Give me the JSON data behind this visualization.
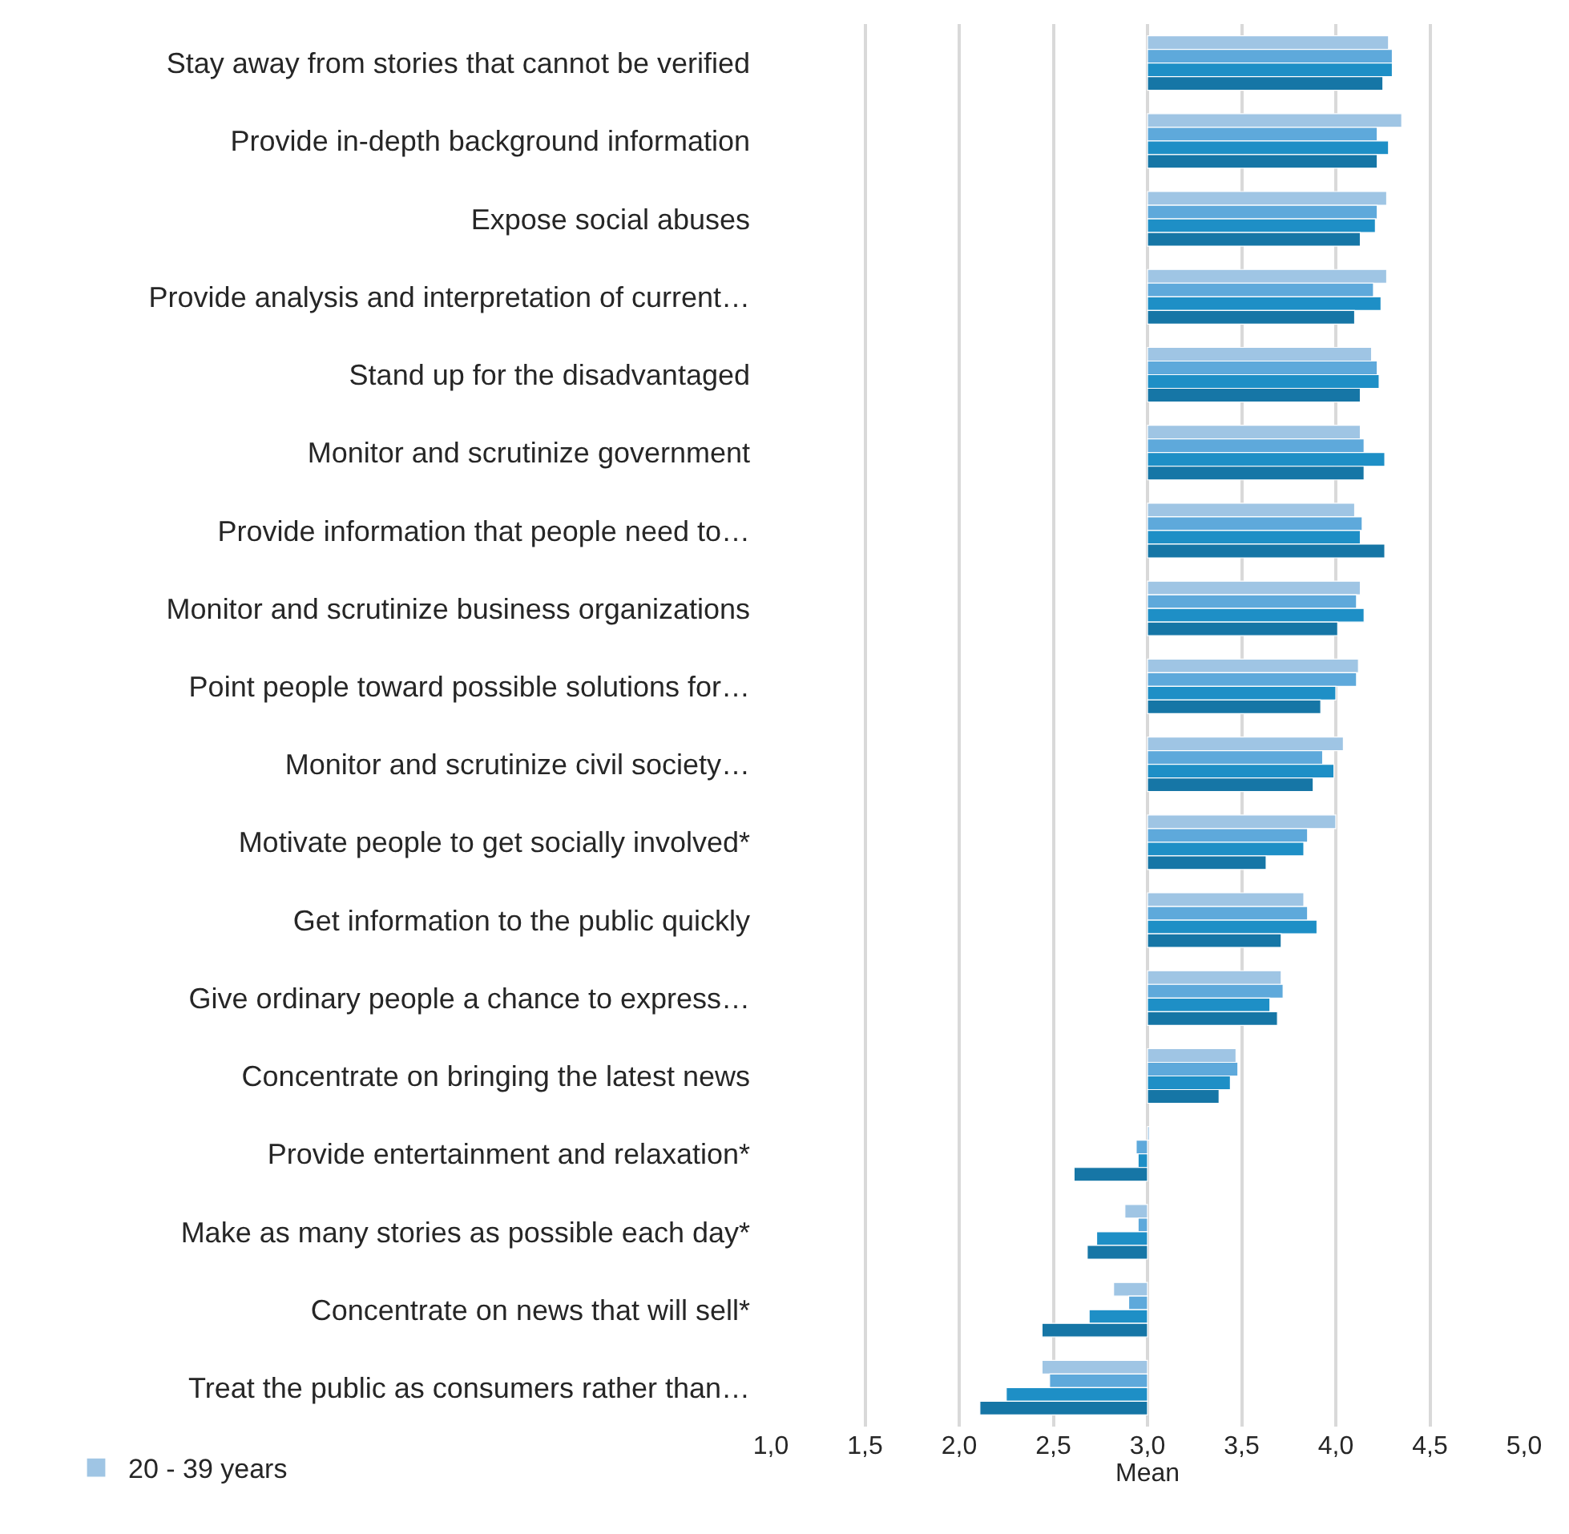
{
  "chart_data": {
    "type": "bar",
    "orientation": "horizontal",
    "categories": [
      "Stay away from stories that cannot be verified",
      "Provide in-depth background information",
      "Expose social abuses",
      "Provide analysis and interpretation of current…",
      "Stand up for the disadvantaged",
      "Monitor and scrutinize government",
      "Provide information that people need to…",
      "Monitor and scrutinize business organizations",
      "Point people toward possible solutions for…",
      "Monitor and scrutinize civil society…",
      "Motivate people to get socially involved*",
      "Get information to the public quickly",
      "Give ordinary people a chance to express…",
      "Concentrate on bringing the latest news",
      "Provide entertainment and relaxation*",
      "Make as many stories as possible each day*",
      "Concentrate on news that will sell*",
      "Treat the public as consumers rather than…"
    ],
    "series": [
      {
        "name": "20 - 39 years",
        "color": "#9fc5e4",
        "base": [
          3,
          3,
          3,
          3,
          3,
          3,
          3,
          3,
          3,
          3,
          3,
          3,
          3,
          3,
          3,
          3,
          3,
          3
        ],
        "values": [
          1.28,
          1.35,
          1.27,
          1.27,
          1.19,
          1.13,
          1.1,
          1.13,
          1.12,
          1.04,
          1.0,
          0.83,
          0.71,
          0.47,
          0.01,
          -0.12,
          -0.18,
          -0.56
        ]
      },
      {
        "color": "#5ea9db",
        "base": [
          3,
          3,
          3,
          3,
          3,
          3,
          3,
          3,
          3,
          3,
          3,
          3,
          3,
          3,
          3,
          3,
          3,
          3
        ],
        "values": [
          1.3,
          1.22,
          1.22,
          1.2,
          1.22,
          1.15,
          1.14,
          1.11,
          1.11,
          0.93,
          0.85,
          0.85,
          0.72,
          0.48,
          -0.06,
          -0.05,
          -0.1,
          -0.52
        ]
      },
      {
        "color": "#1e8fc6",
        "base": [
          3,
          3,
          3,
          3,
          3,
          3,
          3,
          3,
          3,
          3,
          3,
          3,
          3,
          3,
          3,
          3,
          3,
          3
        ],
        "values": [
          1.3,
          1.28,
          1.21,
          1.24,
          1.23,
          1.26,
          1.13,
          1.15,
          1.0,
          0.99,
          0.83,
          0.9,
          0.65,
          0.44,
          -0.05,
          -0.27,
          -0.31,
          -0.75
        ]
      },
      {
        "color": "#1676a6",
        "base": [
          3,
          3,
          3,
          3,
          3,
          3,
          3,
          3,
          3,
          3,
          3,
          3,
          3,
          3,
          3,
          3,
          3,
          3
        ],
        "values": [
          1.25,
          1.22,
          1.13,
          1.1,
          1.13,
          1.15,
          1.26,
          1.01,
          0.92,
          0.88,
          0.63,
          0.71,
          0.69,
          0.38,
          -0.39,
          -0.32,
          -0.56,
          -0.89
        ]
      }
    ],
    "xlabel": "Mean",
    "xlim": [
      1,
      5
    ],
    "xticks": [
      {
        "value": 1,
        "label": "1,0"
      },
      {
        "value": 1.5,
        "label": "1,5"
      },
      {
        "value": 2,
        "label": "2,0"
      },
      {
        "value": 2.5,
        "label": "2,5"
      },
      {
        "value": 3,
        "label": "3,0"
      },
      {
        "value": 3.5,
        "label": "3,5"
      },
      {
        "value": 4,
        "label": "4,0"
      },
      {
        "value": 4.5,
        "label": "4,5"
      },
      {
        "value": 5,
        "label": "5,0"
      }
    ],
    "grid": "x",
    "legend": "bottom left"
  }
}
